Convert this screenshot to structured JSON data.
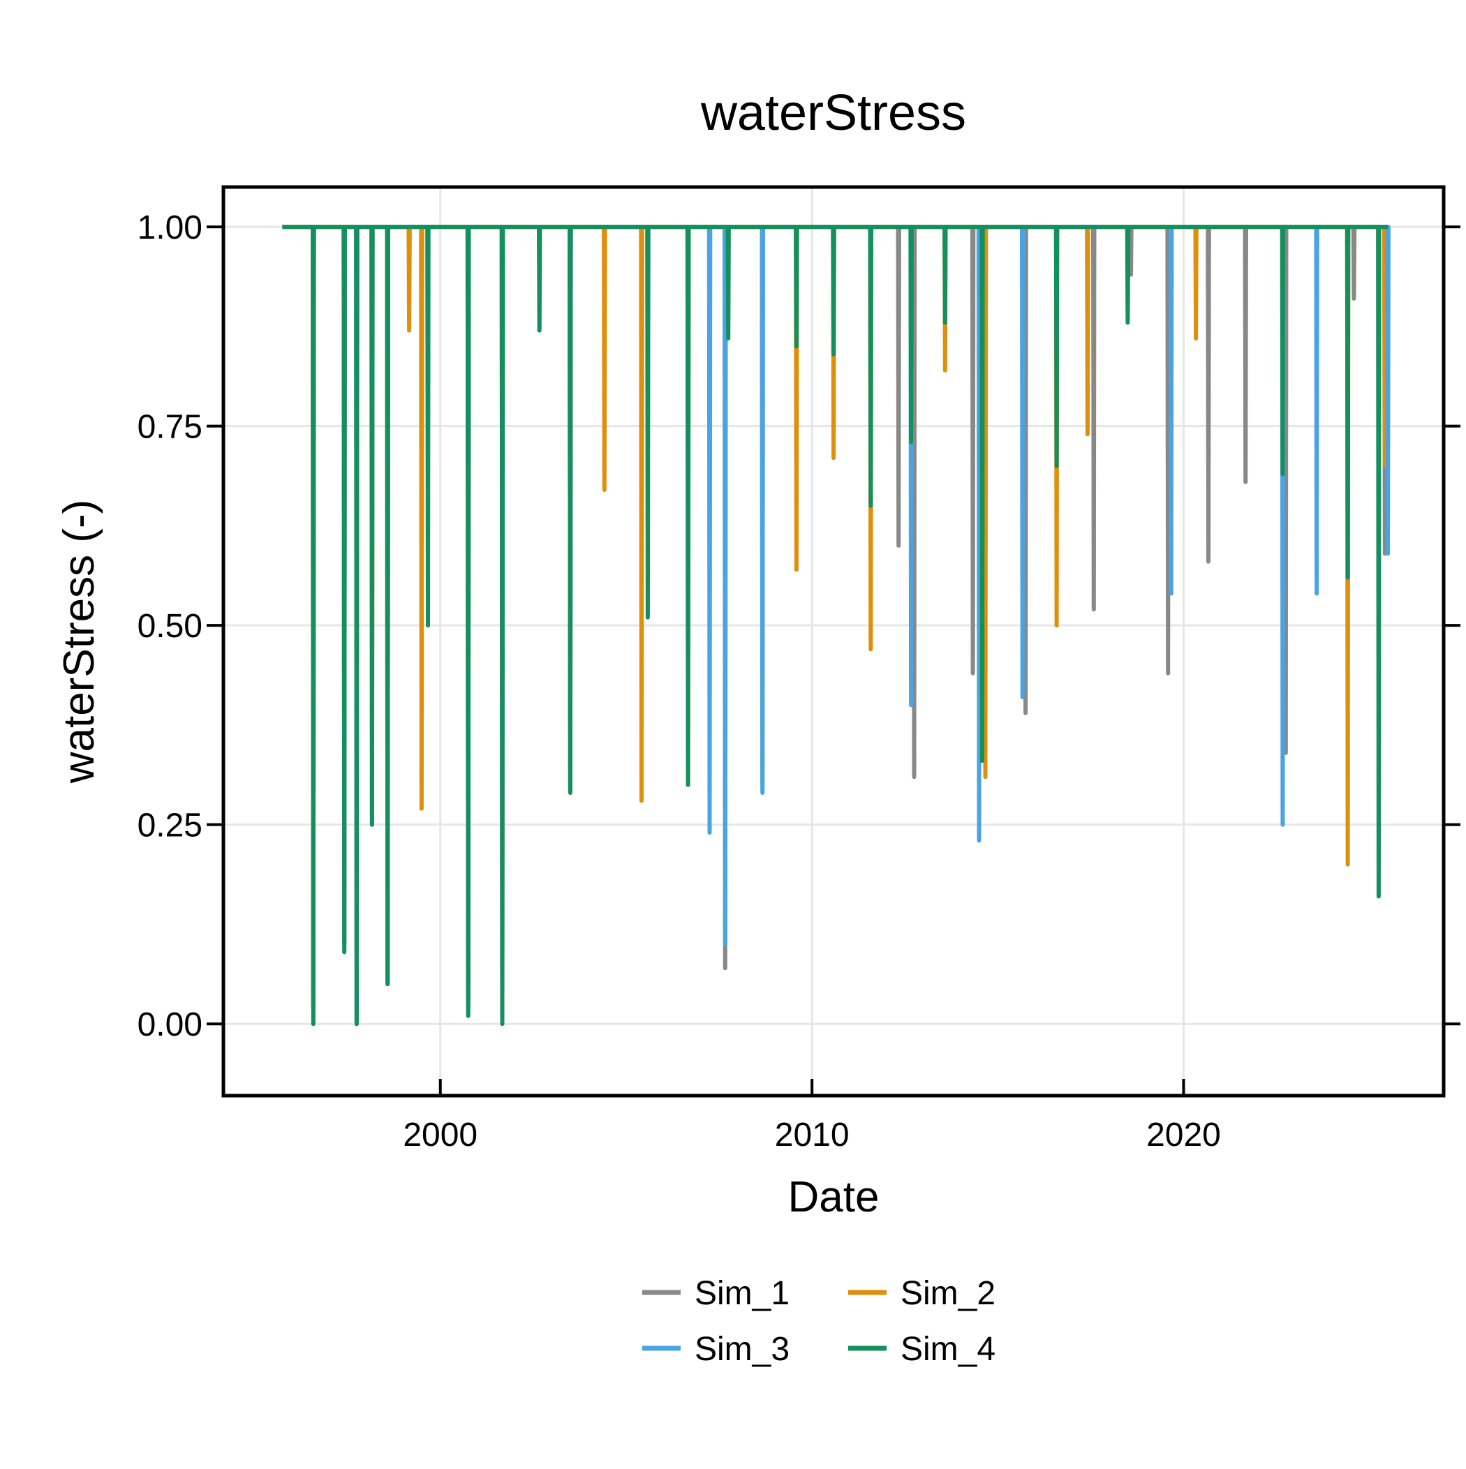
{
  "chart_data": {
    "type": "line",
    "title": "waterStress",
    "xlabel": "Date",
    "ylabel": "waterStress (-)",
    "xlim": [
      "1994-03-01",
      "2026-12-31"
    ],
    "ylim": [
      -0.09,
      1.05
    ],
    "x_ticks": [
      "2000-01-01",
      "2010-01-01",
      "2020-01-01"
    ],
    "x_tick_labels": [
      "2000",
      "2010",
      "2020"
    ],
    "y_ticks": [
      0.0,
      0.25,
      0.5,
      0.75,
      1.0
    ],
    "y_tick_labels": [
      "0.00",
      "0.25",
      "0.50",
      "0.75",
      "1.00"
    ],
    "grid": true,
    "legend": {
      "position": "bottom-center",
      "columns": 2
    },
    "series": [
      {
        "name": "Sim_1",
        "color": "#888888",
        "start": "1995-10-01",
        "end": "2025-07-01",
        "dips": [
          [
            "1996-08-01",
            0.02
          ],
          [
            "1997-06-01",
            0.1
          ],
          [
            "1997-10-01",
            0.0
          ],
          [
            "1998-08-01",
            0.05
          ],
          [
            "2000-10-01",
            0.03
          ],
          [
            "2001-09-01",
            0.02
          ],
          [
            "2003-07-01",
            0.3
          ],
          [
            "2007-09-01",
            0.07
          ],
          [
            "2008-09-01",
            0.3
          ],
          [
            "2012-05-01",
            0.6
          ],
          [
            "2012-10-01",
            0.31
          ],
          [
            "2014-05-01",
            0.44
          ],
          [
            "2015-10-01",
            0.39
          ],
          [
            "2017-08-01",
            0.52
          ],
          [
            "2018-08-01",
            0.94
          ],
          [
            "2019-08-01",
            0.44
          ],
          [
            "2020-09-01",
            0.58
          ],
          [
            "2021-09-01",
            0.68
          ],
          [
            "2022-10-01",
            0.34
          ],
          [
            "2024-08-01",
            0.91
          ],
          [
            "2025-06-01",
            0.59
          ]
        ]
      },
      {
        "name": "Sim_2",
        "color": "#E08F0B",
        "start": "1995-10-01",
        "end": "2025-07-01",
        "dips": [
          [
            "1996-08-01",
            0.02
          ],
          [
            "1997-06-01",
            0.2
          ],
          [
            "1998-03-01",
            0.25
          ],
          [
            "1998-08-01",
            0.05
          ],
          [
            "1999-03-01",
            0.87
          ],
          [
            "1999-07-01",
            0.27
          ],
          [
            "2000-10-01",
            0.03
          ],
          [
            "2001-09-01",
            0.02
          ],
          [
            "2003-07-01",
            0.29
          ],
          [
            "2004-06-01",
            0.67
          ],
          [
            "2005-06-01",
            0.28
          ],
          [
            "2006-09-01",
            0.3
          ],
          [
            "2009-08-01",
            0.57
          ],
          [
            "2010-08-01",
            0.71
          ],
          [
            "2011-08-01",
            0.47
          ],
          [
            "2013-08-01",
            0.82
          ],
          [
            "2014-09-01",
            0.31
          ],
          [
            "2016-08-01",
            0.5
          ],
          [
            "2017-06-01",
            0.74
          ],
          [
            "2020-05-01",
            0.86
          ],
          [
            "2024-06-01",
            0.2
          ],
          [
            "2025-06-01",
            0.7
          ]
        ]
      },
      {
        "name": "Sim_3",
        "color": "#4AA4E2",
        "start": "1995-10-01",
        "end": "2025-07-01",
        "dips": [
          [
            "1996-08-01",
            0.02
          ],
          [
            "1997-06-01",
            0.1
          ],
          [
            "1997-10-01",
            0.0
          ],
          [
            "1998-08-01",
            0.05
          ],
          [
            "2000-10-01",
            0.02
          ],
          [
            "2001-09-01",
            0.02
          ],
          [
            "2003-07-01",
            0.3
          ],
          [
            "2007-04-01",
            0.24
          ],
          [
            "2007-09-01",
            0.1
          ],
          [
            "2008-09-01",
            0.29
          ],
          [
            "2012-09-01",
            0.4
          ],
          [
            "2014-07-01",
            0.23
          ],
          [
            "2015-09-01",
            0.41
          ],
          [
            "2019-09-01",
            0.54
          ],
          [
            "2022-09-01",
            0.25
          ],
          [
            "2023-08-01",
            0.54
          ],
          [
            "2025-07-01",
            0.59
          ]
        ]
      },
      {
        "name": "Sim_4",
        "color": "#148F5E",
        "start": "1995-10-01",
        "end": "2025-07-01",
        "dips": [
          [
            "1996-08-01",
            0.0
          ],
          [
            "1997-06-01",
            0.09
          ],
          [
            "1997-10-01",
            0.0
          ],
          [
            "1998-03-01",
            0.25
          ],
          [
            "1998-08-01",
            0.05
          ],
          [
            "1999-09-01",
            0.5
          ],
          [
            "2000-10-01",
            0.01
          ],
          [
            "2001-09-01",
            0.0
          ],
          [
            "2002-09-01",
            0.87
          ],
          [
            "2003-07-01",
            0.29
          ],
          [
            "2005-08-01",
            0.51
          ],
          [
            "2006-09-01",
            0.3
          ],
          [
            "2007-10-01",
            0.86
          ],
          [
            "2009-08-01",
            0.85
          ],
          [
            "2010-08-01",
            0.84
          ],
          [
            "2011-08-01",
            0.65
          ],
          [
            "2012-09-01",
            0.73
          ],
          [
            "2013-08-01",
            0.88
          ],
          [
            "2014-08-01",
            0.33
          ],
          [
            "2016-08-01",
            0.7
          ],
          [
            "2018-07-01",
            0.88
          ],
          [
            "2022-09-01",
            0.69
          ],
          [
            "2024-06-01",
            0.56
          ],
          [
            "2025-04-01",
            0.16
          ]
        ]
      }
    ]
  }
}
